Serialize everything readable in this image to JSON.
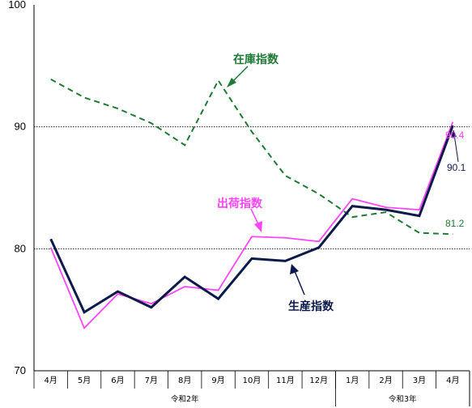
{
  "chart_data": {
    "type": "line",
    "categories": [
      "4月",
      "5月",
      "6月",
      "7月",
      "8月",
      "9月",
      "10月",
      "11月",
      "12月",
      "1月",
      "2月",
      "3月",
      "4月"
    ],
    "groups": [
      {
        "label": "令和2年",
        "start": 0,
        "end": 8
      },
      {
        "label": "令和3年",
        "start": 9,
        "end": 12
      }
    ],
    "ylim": [
      70,
      100
    ],
    "yticks": [
      70,
      80,
      90,
      100
    ],
    "reference_lines": [
      80,
      90
    ],
    "series": [
      {
        "name": "在庫指数",
        "color": "#1e7a34",
        "dash": "dashed",
        "width": 2,
        "values": [
          93.9,
          92.4,
          91.5,
          90.3,
          88.5,
          93.8,
          89.6,
          86.0,
          84.5,
          82.6,
          83.0,
          81.3,
          81.2
        ]
      },
      {
        "name": "出荷指数",
        "color": "#ff44ff",
        "dash": "solid",
        "width": 1.8,
        "values": [
          80.1,
          73.5,
          76.3,
          75.5,
          76.9,
          76.6,
          81.0,
          80.9,
          80.6,
          84.1,
          83.4,
          83.2,
          90.4
        ]
      },
      {
        "name": "生産指数",
        "color": "#0b1a4a",
        "dash": "solid",
        "width": 3,
        "values": [
          80.8,
          74.8,
          76.5,
          75.2,
          77.7,
          75.9,
          79.2,
          79.0,
          80.1,
          83.5,
          83.2,
          82.7,
          90.1
        ]
      }
    ],
    "annotations": {
      "zaiko": "在庫指数",
      "shukka": "出荷指数",
      "seisan": "生産指数",
      "last_zaiko": "81.2",
      "last_shukka": "90.4",
      "last_seisan": "90.1"
    },
    "colors": {
      "zaiko": "#1e7a34",
      "shukka": "#ff44ff",
      "seisan": "#0b1a4a"
    }
  }
}
